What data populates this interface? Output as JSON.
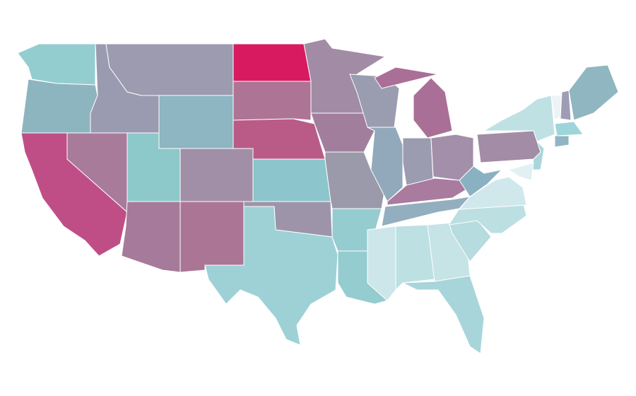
{
  "map": {
    "regions": [
      {
        "color": "#94cdd0"
      },
      {
        "color": "#8db5bf"
      },
      {
        "color": "#c04e86"
      },
      {
        "color": "#a97b9b"
      },
      {
        "color": "#9a9bb0"
      },
      {
        "color": "#9c9bb0"
      },
      {
        "color": "#8db5c2"
      },
      {
        "color": "#8dc8ca"
      },
      {
        "color": "#a67a9a"
      },
      {
        "color": "#a18fa8"
      },
      {
        "color": "#ab7596"
      },
      {
        "color": "#d81b60"
      },
      {
        "color": "#ad7495"
      },
      {
        "color": "#ba5b87"
      },
      {
        "color": "#8cc5cc"
      },
      {
        "color": "#9e94aa"
      },
      {
        "color": "#9ed1d5"
      },
      {
        "color": "#a28ca5"
      },
      {
        "color": "#a27e9d"
      },
      {
        "color": "#9b9aab"
      },
      {
        "color": "#95ccd0"
      },
      {
        "color": "#94ccd0"
      },
      {
        "color": "#9a9cb0"
      },
      {
        "color": "#91a9bb"
      },
      {
        "color": "#aa6f96"
      },
      {
        "color": "#9c9cb0"
      },
      {
        "color": "#a38fa9"
      },
      {
        "color": "#a97b9e"
      },
      {
        "color": "#93aebf"
      },
      {
        "color": "#cce6e9"
      },
      {
        "color": "#bde0e2"
      },
      {
        "color": "#c6e3e6"
      },
      {
        "color": "#a7d5da"
      },
      {
        "color": "#b6dcdf"
      },
      {
        "color": "#bcdfe1"
      },
      {
        "color": "#d0e8ec"
      },
      {
        "color": "#8ab1c1"
      },
      {
        "color": "#a38ca6"
      },
      {
        "color": "#bfe1e4"
      },
      {
        "color": "#a9d6dc"
      },
      {
        "color": "#e3f0f3"
      },
      {
        "color": "#eef3f6"
      },
      {
        "color": "#9f9db5"
      },
      {
        "color": "#8fb6c1"
      },
      {
        "color": "#9dd5da"
      },
      {
        "color": "#91b5c3"
      }
    ]
  }
}
